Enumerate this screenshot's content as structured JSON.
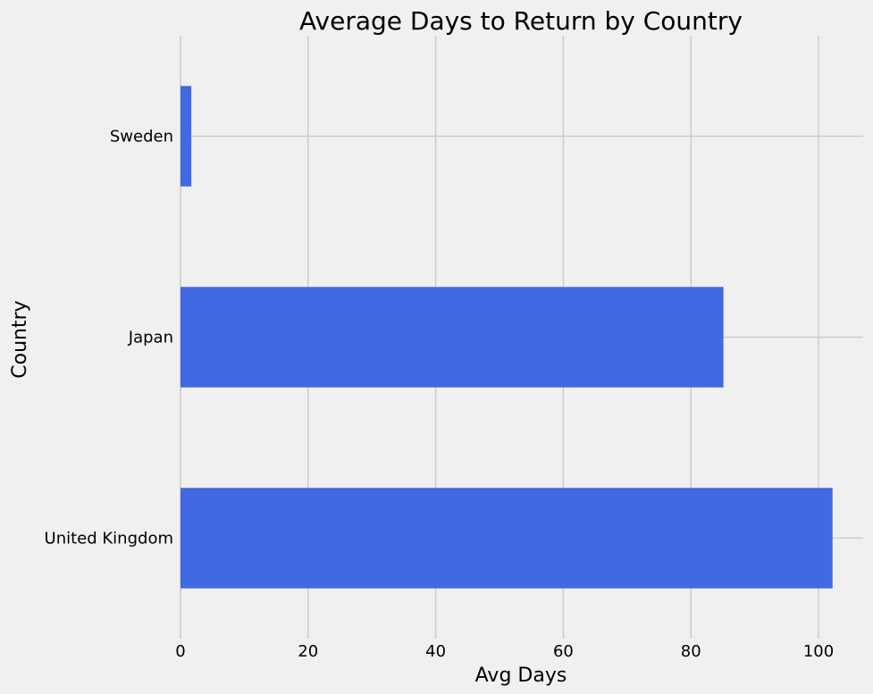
{
  "chart_data": {
    "type": "bar",
    "orientation": "horizontal",
    "title": "Average Days to Return by Country",
    "xlabel": "Avg Days",
    "ylabel": "Country",
    "categories": [
      "United Kingdom",
      "Japan",
      "Sweden"
    ],
    "values": [
      102.2,
      85.1,
      1.7
    ],
    "xlim": [
      0,
      107
    ],
    "xticks": [
      0,
      20,
      40,
      60,
      80,
      100
    ],
    "grid": true,
    "bar_color": "#4169e1",
    "background_color": "#f0f0f0",
    "grid_color": "#cbcbcb"
  }
}
